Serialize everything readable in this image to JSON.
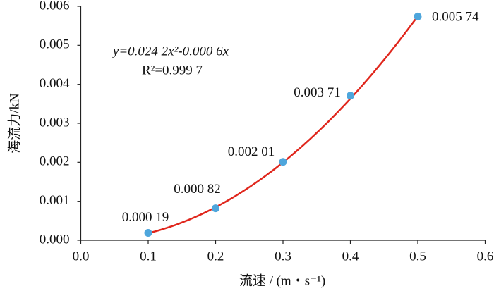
{
  "chart_data": {
    "type": "scatter",
    "x_label": "流速 / (m・s⁻¹)",
    "y_label": "海流力/kN",
    "annotations": [
      "y=0.024 2x²-0.000 6x",
      "R²=0.999 7"
    ],
    "x": [
      0.1,
      0.2,
      0.3,
      0.4,
      0.5
    ],
    "values": [
      0.00019,
      0.00082,
      0.00201,
      0.00371,
      0.00574
    ],
    "value_labels": [
      "0.000 19",
      "0.000 82",
      "0.002 01",
      "0.003 71",
      "0.005 74"
    ],
    "color": "#4ea6dc",
    "trendline": {
      "a": 0.0242,
      "b": -0.0006,
      "color": "#e0261c"
    },
    "xlim": [
      0,
      0.6
    ],
    "xticks": [
      {
        "value": 0,
        "label": "0.0"
      },
      0.1,
      0.2,
      0.3,
      0.4,
      0.5,
      0.6
    ],
    "ylim": [
      0,
      0.006
    ],
    "yticks": [
      {
        "value": 0,
        "label": "0.000"
      },
      0.001,
      0.002,
      0.003,
      0.004,
      0.005,
      0.006
    ]
  }
}
